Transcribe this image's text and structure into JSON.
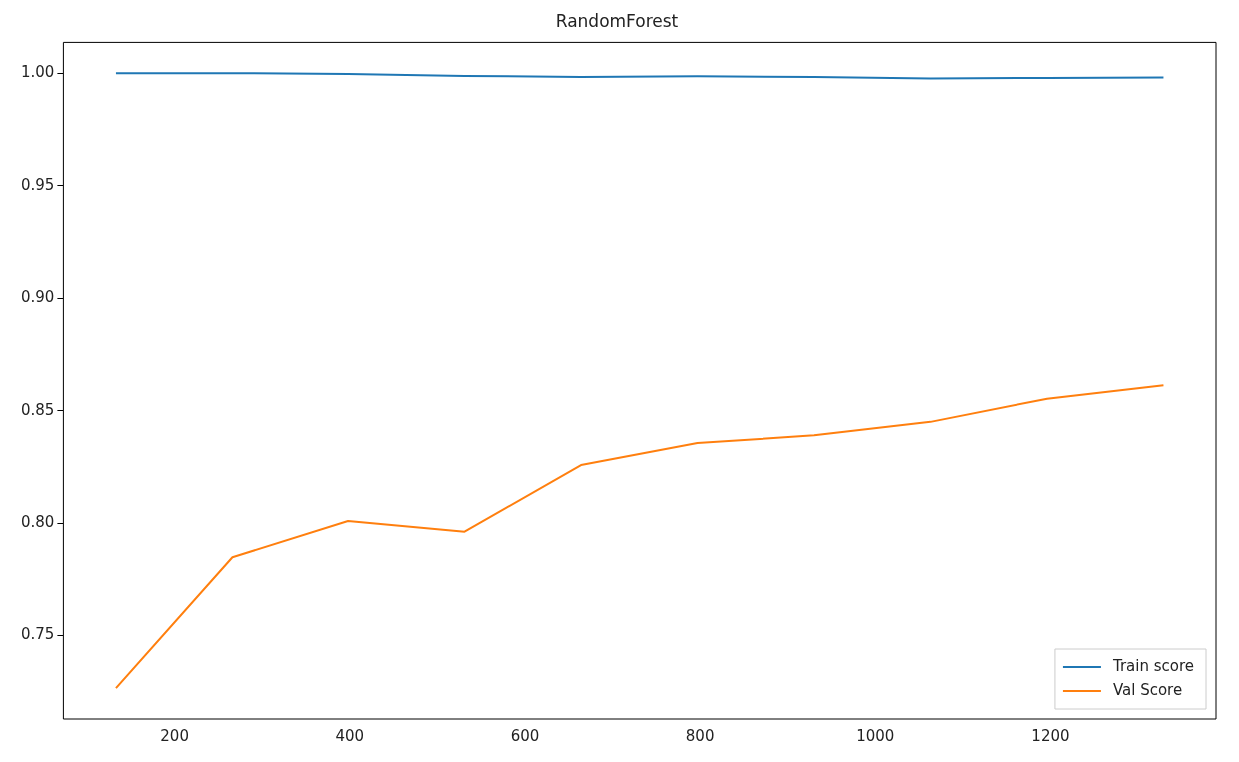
{
  "chart_data": {
    "type": "line",
    "title": "RandomForest",
    "x": [
      133,
      266,
      398,
      531,
      664,
      797,
      930,
      1063,
      1196,
      1329
    ],
    "series": [
      {
        "name": "Train score",
        "color": "#1f77b4",
        "values": [
          1.0,
          1.0,
          0.9997,
          0.9988,
          0.9983,
          0.9986,
          0.9983,
          0.9976,
          0.9979,
          0.9981
        ]
      },
      {
        "name": "Val Score",
        "color": "#ff7f0e",
        "values": [
          0.7266,
          0.7848,
          0.8009,
          0.7962,
          0.8258,
          0.8356,
          0.839,
          0.845,
          0.8553,
          0.8613
        ]
      }
    ],
    "xlim": [
      73,
      1389
    ],
    "xticks": [
      200,
      400,
      600,
      800,
      1000,
      1200
    ],
    "ylim": [
      0.7129,
      1.0137
    ],
    "yticks": [
      {
        "value": 0.75,
        "label": "0.75"
      },
      {
        "value": 0.8,
        "label": "0.80"
      },
      {
        "value": 0.85,
        "label": "0.85"
      },
      {
        "value": 0.9,
        "label": "0.90"
      },
      {
        "value": 0.95,
        "label": "0.95"
      },
      {
        "value": 1.0,
        "label": "1.00"
      }
    ],
    "grid": false,
    "legend": "bottom right",
    "marker": "none",
    "line_style": "solid"
  }
}
